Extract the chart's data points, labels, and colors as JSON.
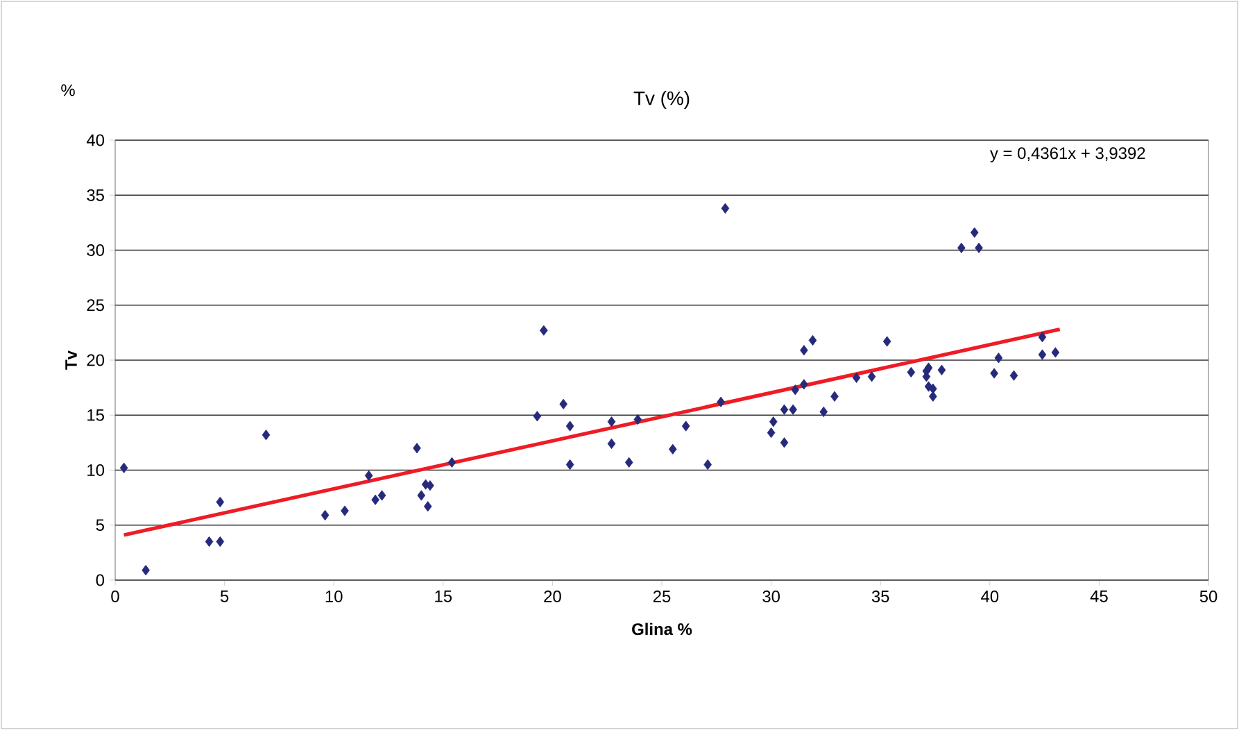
{
  "chart_data": {
    "type": "scatter",
    "title": "Tv (%)",
    "xlabel": "Glina %",
    "ylabel": "Tv",
    "annotations": [
      "%",
      "y = 0,4361x + 3,9392"
    ],
    "xlim": [
      0,
      50
    ],
    "ylim": [
      0,
      40
    ],
    "xticks": [
      0,
      5,
      10,
      15,
      20,
      25,
      30,
      35,
      40,
      45,
      50
    ],
    "yticks": [
      0,
      5,
      10,
      15,
      20,
      25,
      30,
      35,
      40
    ],
    "grid": "y",
    "series": [
      {
        "marker": "diamond",
        "color": "#262a7a",
        "x": [
          0.4,
          1.4,
          4.3,
          4.8,
          4.8,
          6.9,
          9.6,
          10.5,
          11.6,
          11.9,
          12.2,
          13.8,
          14.0,
          14.2,
          14.3,
          14.4,
          15.4,
          19.3,
          19.6,
          20.5,
          20.8,
          20.8,
          22.7,
          22.7,
          23.5,
          23.9,
          25.5,
          26.1,
          27.1,
          27.7,
          27.9,
          30.0,
          30.1,
          30.6,
          30.6,
          31.0,
          31.1,
          31.5,
          31.5,
          31.9,
          32.4,
          32.9,
          33.9,
          34.6,
          35.3,
          36.4,
          37.1,
          37.2,
          37.1,
          37.2,
          37.4,
          37.4,
          37.8,
          38.7,
          39.3,
          39.5,
          40.2,
          40.4,
          41.1,
          42.4,
          42.4,
          43.0
        ],
        "values": [
          10.2,
          0.9,
          3.5,
          3.5,
          7.1,
          13.2,
          5.9,
          6.3,
          9.5,
          7.3,
          7.7,
          12.0,
          7.7,
          8.7,
          6.7,
          8.6,
          10.7,
          14.9,
          22.7,
          16.0,
          14.0,
          10.5,
          14.4,
          12.4,
          10.7,
          14.6,
          11.9,
          14.0,
          10.5,
          16.2,
          33.8,
          13.4,
          14.4,
          12.5,
          15.5,
          15.5,
          17.3,
          20.9,
          17.8,
          21.8,
          15.3,
          16.7,
          18.4,
          18.5,
          21.7,
          18.9,
          19.0,
          19.3,
          18.5,
          17.6,
          17.4,
          16.7,
          19.1,
          30.2,
          31.6,
          30.2,
          18.8,
          20.2,
          18.6,
          22.1,
          20.5,
          20.7
        ]
      },
      {
        "type": "line",
        "marker": "none",
        "line_style": "solid",
        "color": "#ee1c25",
        "x": [
          0.4,
          43.2
        ],
        "values": [
          4.1,
          22.8
        ]
      }
    ]
  }
}
